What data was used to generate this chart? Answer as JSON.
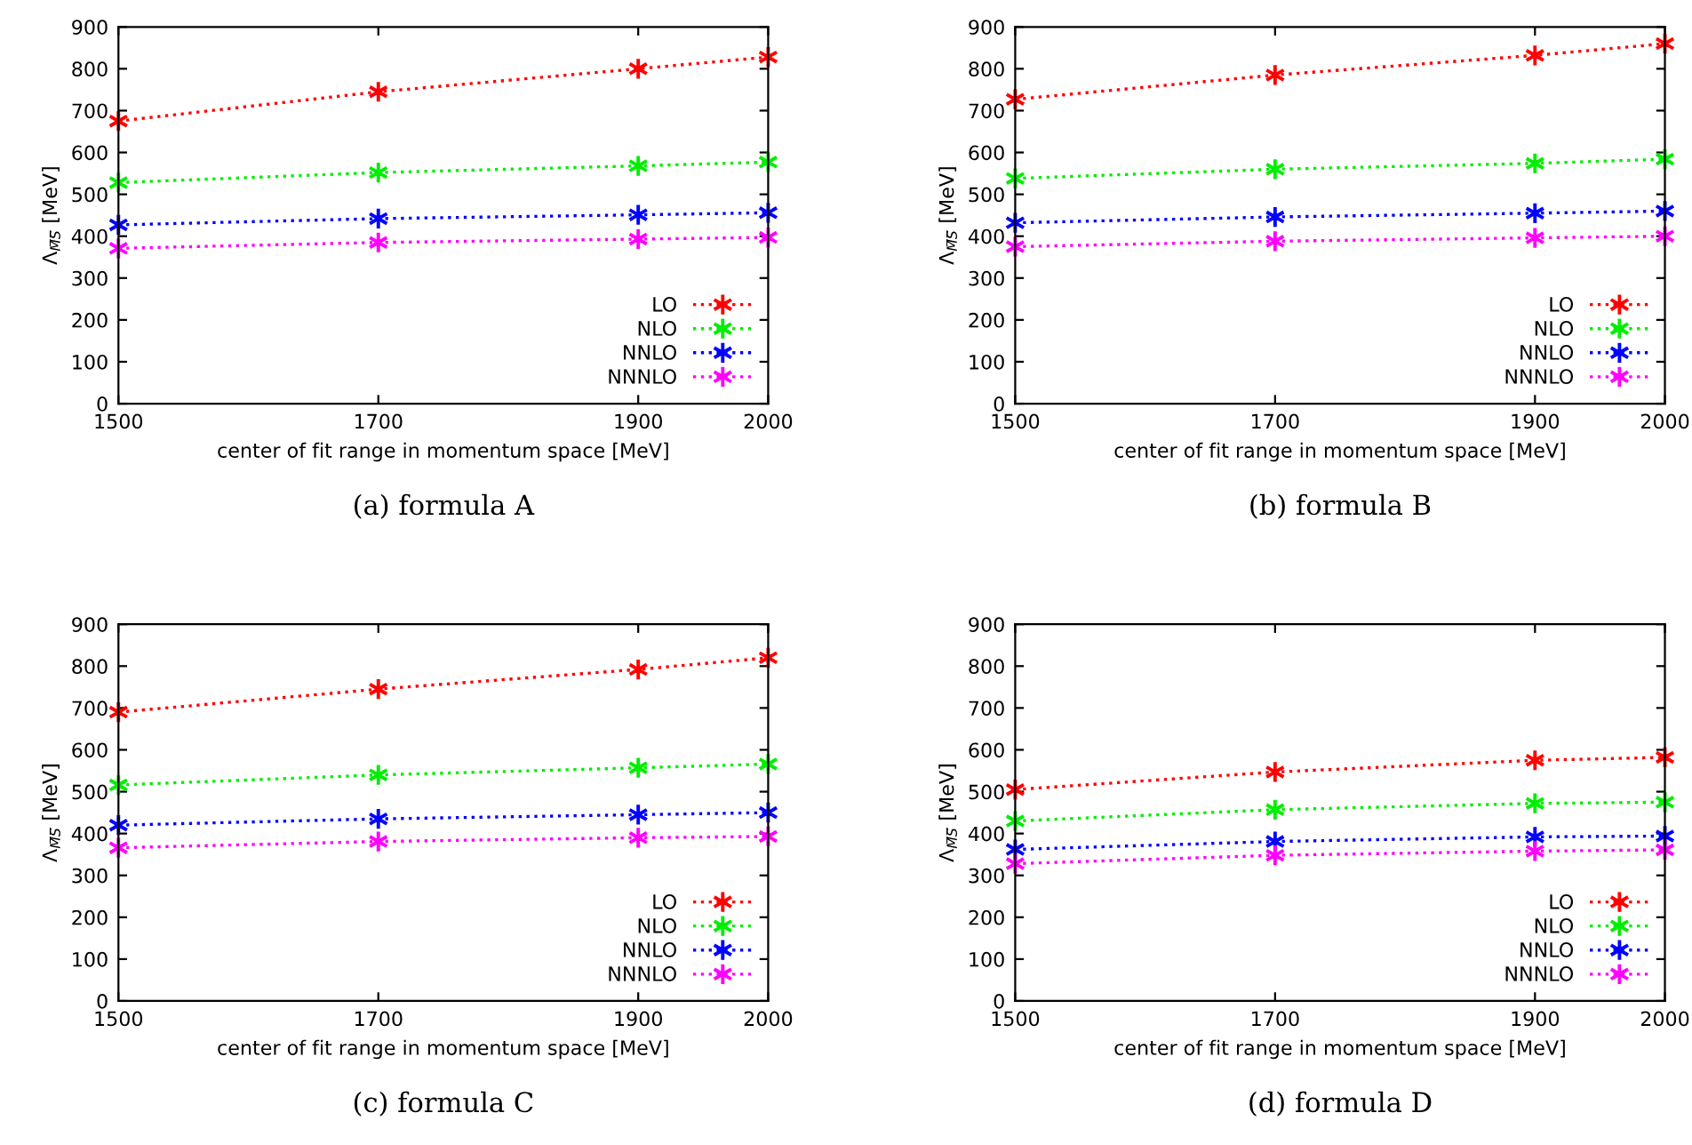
{
  "chart_data": [
    {
      "type": "line",
      "title": "(a) formula A",
      "xlabel": "center of fit range in momentum space [MeV]",
      "ylabel": "Λ$_{M̅S̅}$ [MeV]",
      "x": [
        1500,
        1700,
        1900,
        2000
      ],
      "xlim": [
        1500,
        2000
      ],
      "xticks": [
        1500,
        1700,
        1900,
        2000
      ],
      "ylim": [
        0,
        900
      ],
      "yticks": [
        0,
        100,
        200,
        300,
        400,
        500,
        600,
        700,
        800,
        900
      ],
      "legend": "bottom right",
      "marker": "cross",
      "line_style": "dotted",
      "grid": false,
      "series": [
        {
          "name": "LO",
          "color": "#ff0000",
          "values": [
            675,
            745,
            800,
            828
          ]
        },
        {
          "name": "NLO",
          "color": "#00ee00",
          "values": [
            528,
            552,
            568,
            577
          ]
        },
        {
          "name": "NNLO",
          "color": "#0000ff",
          "values": [
            427,
            442,
            451,
            456
          ]
        },
        {
          "name": "NNNLO",
          "color": "#ff00ff",
          "values": [
            371,
            385,
            393,
            397
          ]
        }
      ]
    },
    {
      "type": "line",
      "title": "(b) formula B",
      "xlabel": "center of fit range in momentum space [MeV]",
      "ylabel": "Λ$_{M̅S̅}$ [MeV]",
      "x": [
        1500,
        1700,
        1900,
        2000
      ],
      "xlim": [
        1500,
        2000
      ],
      "xticks": [
        1500,
        1700,
        1900,
        2000
      ],
      "ylim": [
        0,
        900
      ],
      "yticks": [
        0,
        100,
        200,
        300,
        400,
        500,
        600,
        700,
        800,
        900
      ],
      "legend": "bottom right",
      "marker": "cross",
      "line_style": "dotted",
      "grid": false,
      "series": [
        {
          "name": "LO",
          "color": "#ff0000",
          "values": [
            727,
            785,
            832,
            860
          ]
        },
        {
          "name": "NLO",
          "color": "#00ee00",
          "values": [
            538,
            560,
            574,
            584
          ]
        },
        {
          "name": "NNLO",
          "color": "#0000ff",
          "values": [
            432,
            446,
            455,
            460
          ]
        },
        {
          "name": "NNNLO",
          "color": "#ff00ff",
          "values": [
            375,
            388,
            396,
            400
          ]
        }
      ]
    },
    {
      "type": "line",
      "title": "(c) formula C",
      "xlabel": "center of fit range in momentum space [MeV]",
      "ylabel": "Λ$_{M̅S̅}$ [MeV]",
      "x": [
        1500,
        1700,
        1900,
        2000
      ],
      "xlim": [
        1500,
        2000
      ],
      "xticks": [
        1500,
        1700,
        1900,
        2000
      ],
      "ylim": [
        0,
        900
      ],
      "yticks": [
        0,
        100,
        200,
        300,
        400,
        500,
        600,
        700,
        800,
        900
      ],
      "legend": "bottom right",
      "marker": "cross",
      "line_style": "dotted",
      "grid": false,
      "series": [
        {
          "name": "LO",
          "color": "#ff0000",
          "values": [
            690,
            745,
            792,
            820
          ]
        },
        {
          "name": "NLO",
          "color": "#00ee00",
          "values": [
            516,
            540,
            557,
            566
          ]
        },
        {
          "name": "NNLO",
          "color": "#0000ff",
          "values": [
            420,
            435,
            445,
            450
          ]
        },
        {
          "name": "NNNLO",
          "color": "#ff00ff",
          "values": [
            366,
            381,
            390,
            393
          ]
        }
      ]
    },
    {
      "type": "line",
      "title": "(d) formula D",
      "xlabel": "center of fit range in momentum space [MeV]",
      "ylabel": "Λ$_{M̅S̅}$ [MeV]",
      "x": [
        1500,
        1700,
        1900,
        2000
      ],
      "xlim": [
        1500,
        2000
      ],
      "xticks": [
        1500,
        1700,
        1900,
        2000
      ],
      "ylim": [
        0,
        900
      ],
      "yticks": [
        0,
        100,
        200,
        300,
        400,
        500,
        600,
        700,
        800,
        900
      ],
      "legend": "bottom right",
      "marker": "cross",
      "line_style": "dotted",
      "grid": false,
      "series": [
        {
          "name": "LO",
          "color": "#ff0000",
          "values": [
            505,
            547,
            575,
            582
          ]
        },
        {
          "name": "NLO",
          "color": "#00ee00",
          "values": [
            430,
            457,
            472,
            475
          ]
        },
        {
          "name": "NNLO",
          "color": "#0000ff",
          "values": [
            362,
            381,
            392,
            394
          ]
        },
        {
          "name": "NNNLO",
          "color": "#ff00ff",
          "values": [
            328,
            348,
            358,
            361
          ]
        }
      ]
    }
  ]
}
